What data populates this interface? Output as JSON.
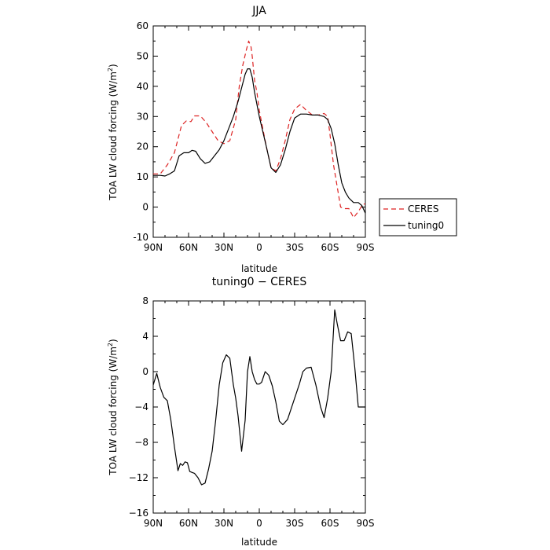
{
  "chart_data": [
    {
      "type": "line",
      "title": "JJA",
      "xlabel": "latitude",
      "ylabel_main": "TOA LW cloud forcing (W/m",
      "ylabel_sup": "2",
      "ylabel_close": ")",
      "xlim": [
        90,
        -90
      ],
      "ylim": [
        -10,
        60
      ],
      "x_ticks": [
        90,
        60,
        30,
        0,
        -30,
        -60,
        -90
      ],
      "x_tick_labels": [
        "90N",
        "60N",
        "30N",
        "0",
        "30S",
        "60S",
        "90S"
      ],
      "y_ticks": [
        -10,
        0,
        10,
        20,
        30,
        40,
        50,
        60
      ],
      "y_tick_labels": [
        "-10",
        "0",
        "10",
        "20",
        "30",
        "40",
        "50",
        "60"
      ],
      "grid": false,
      "legend_placement": "right-bottom-outside",
      "series": [
        {
          "name": "CERES",
          "color": "#dd2222",
          "dash": "dashed",
          "x": [
            90,
            84,
            78,
            72,
            66,
            62,
            58,
            55,
            50,
            45,
            40,
            35,
            30,
            25,
            20,
            17,
            14,
            11,
            9,
            8,
            7,
            6,
            4,
            2,
            0,
            -3,
            -6,
            -10,
            -14,
            -18,
            -22,
            -26,
            -30,
            -35,
            -40,
            -45,
            -50,
            -55,
            -58,
            -60,
            -63,
            -66,
            -69,
            -72,
            -76,
            -80,
            -84,
            -88,
            -90
          ],
          "values": [
            11,
            11,
            14,
            18,
            27,
            28.5,
            28.3,
            30.2,
            30.2,
            28,
            25,
            22,
            21,
            22,
            29,
            40,
            47,
            52,
            55,
            54,
            53,
            50,
            42,
            38,
            32,
            26,
            20,
            13,
            12,
            16,
            22,
            29,
            32.5,
            34,
            32,
            30.5,
            30.5,
            31,
            30,
            24,
            14,
            7,
            0,
            -0.5,
            -0.5,
            -3.5,
            -1.5,
            1,
            1
          ]
        },
        {
          "name": "tuning0",
          "color": "#000000",
          "dash": "solid",
          "x": [
            90,
            84,
            80,
            76,
            72,
            68,
            64,
            60,
            57,
            54,
            50,
            46,
            42,
            38,
            34,
            30,
            26,
            22,
            18,
            14,
            12,
            10,
            8,
            6,
            4,
            2,
            0,
            -3,
            -6,
            -10,
            -14,
            -18,
            -22,
            -26,
            -30,
            -35,
            -40,
            -45,
            -50,
            -55,
            -58,
            -61,
            -64,
            -67,
            -70,
            -73,
            -76,
            -80,
            -84,
            -87,
            -90
          ],
          "values": [
            10.5,
            10.5,
            10.3,
            11,
            12,
            17,
            18,
            18,
            18.8,
            18.5,
            16,
            14.5,
            15,
            17,
            19,
            22,
            26,
            30,
            35,
            41,
            44,
            45.8,
            45.8,
            43,
            38,
            34,
            30,
            25,
            20,
            13,
            11.5,
            14,
            19,
            25,
            29.5,
            30.8,
            30.8,
            30.5,
            30.5,
            30,
            29,
            26,
            21,
            14,
            8,
            5,
            3,
            1.5,
            1.5,
            0.5,
            -2
          ]
        }
      ]
    },
    {
      "type": "line",
      "title": "tuning0 − CERES",
      "xlabel": "latitude",
      "ylabel_main": "TOA LW cloud forcing (W/m",
      "ylabel_sup": "2",
      "ylabel_close": ")",
      "xlim": [
        90,
        -90
      ],
      "ylim": [
        -16,
        8
      ],
      "x_ticks": [
        90,
        60,
        30,
        0,
        -30,
        -60,
        -90
      ],
      "x_tick_labels": [
        "90N",
        "60N",
        "30N",
        "0",
        "30S",
        "60S",
        "90S"
      ],
      "y_ticks": [
        -16,
        -12,
        -8,
        -4,
        0,
        4,
        8
      ],
      "y_tick_labels": [
        "−16",
        "−12",
        "−8",
        "−4",
        "0",
        "4",
        "8"
      ],
      "grid": false,
      "series": [
        {
          "name": "tuning0 − CERES",
          "color": "#000000",
          "dash": "solid",
          "x": [
            90,
            87,
            84,
            81,
            78,
            75,
            72,
            69,
            67,
            65,
            63,
            61,
            59,
            57,
            55,
            52,
            49,
            46,
            43,
            40,
            37,
            34,
            31,
            28,
            25,
            22,
            20,
            18,
            15,
            12,
            10,
            8,
            6,
            4,
            2,
            0,
            -2,
            -5,
            -8,
            -11,
            -14,
            -17,
            -20,
            -24,
            -28,
            -31,
            -34,
            -37,
            -40,
            -44,
            -48,
            -52,
            -55,
            -58,
            -61,
            -64,
            -66,
            -69,
            -72,
            -75,
            -78,
            -81,
            -84,
            -87,
            -90
          ],
          "values": [
            -1.5,
            -0.2,
            -1.8,
            -2.9,
            -3.3,
            -5.5,
            -8.5,
            -11.2,
            -10.4,
            -10.6,
            -10.2,
            -10.3,
            -11.3,
            -11.4,
            -11.5,
            -12,
            -12.8,
            -12.6,
            -11,
            -9,
            -5.5,
            -1.5,
            1,
            1.9,
            1.5,
            -1.5,
            -3,
            -5,
            -9,
            -5.5,
            0,
            1.7,
            0,
            -0.9,
            -1.4,
            -1.4,
            -1.2,
            0,
            -0.4,
            -1.6,
            -3.4,
            -5.6,
            -6,
            -5.4,
            -3.8,
            -2.6,
            -1.4,
            0,
            0.4,
            0.5,
            -1.5,
            -4,
            -5.2,
            -3,
            0,
            7,
            5.5,
            3.5,
            3.5,
            4.5,
            4.3,
            0.5,
            -4,
            -4,
            -4
          ]
        }
      ]
    }
  ]
}
